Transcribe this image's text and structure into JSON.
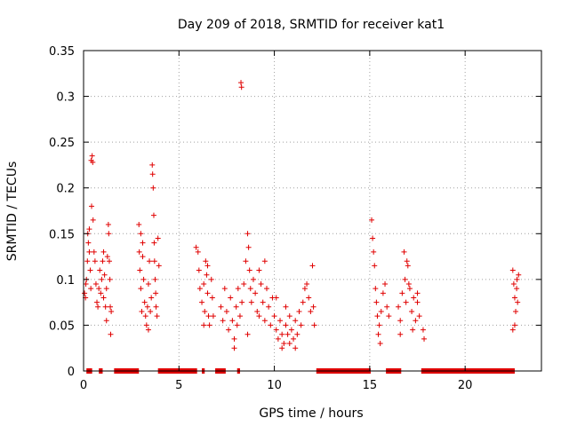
{
  "colors": {
    "series": "#e00000",
    "frame": "#000000",
    "grid": "#a0a0a0"
  },
  "chart_data": {
    "type": "scatter",
    "title": "Day 209 of 2018, SRMTID for receiver kat1",
    "xlabel": "GPS time / hours",
    "ylabel": "SRMTID / TECUs",
    "xlim": [
      0,
      24
    ],
    "ylim": [
      0,
      0.35
    ],
    "grid": true,
    "xticks": [
      0,
      5,
      10,
      15,
      20
    ],
    "xtick_labels": [
      "0",
      "5",
      "10",
      "15",
      "20"
    ],
    "yticks": [
      0,
      0.05,
      0.1,
      0.15,
      0.2,
      0.25,
      0.3,
      0.35
    ],
    "ytick_labels": [
      "0",
      "0.05",
      "0.1",
      "0.15",
      "0.2",
      "0.25",
      "0.3",
      "0.35"
    ],
    "marker": "+",
    "series": [
      {
        "name": "SRMTID",
        "points": [
          [
            0.05,
            0.085
          ],
          [
            0.1,
            0.08
          ],
          [
            0.12,
            0.095
          ],
          [
            0.15,
            0.1
          ],
          [
            0.2,
            0.12
          ],
          [
            0.22,
            0.15
          ],
          [
            0.25,
            0.14
          ],
          [
            0.3,
            0.13
          ],
          [
            0.35,
            0.11
          ],
          [
            0.38,
            0.09
          ],
          [
            0.4,
            0.23
          ],
          [
            0.45,
            0.235
          ],
          [
            0.48,
            0.228
          ],
          [
            0.42,
            0.18
          ],
          [
            0.5,
            0.165
          ],
          [
            0.55,
            0.13
          ],
          [
            0.6,
            0.12
          ],
          [
            0.65,
            0.095
          ],
          [
            0.7,
            0.075
          ],
          [
            0.75,
            0.07
          ],
          [
            0.8,
            0.09
          ],
          [
            0.85,
            0.11
          ],
          [
            0.9,
            0.085
          ],
          [
            0.95,
            0.1
          ],
          [
            1.0,
            0.12
          ],
          [
            1.05,
            0.08
          ],
          [
            1.1,
            0.105
          ],
          [
            1.15,
            0.07
          ],
          [
            1.2,
            0.09
          ],
          [
            1.25,
            0.125
          ],
          [
            1.3,
            0.16
          ],
          [
            1.32,
            0.15
          ],
          [
            1.35,
            0.12
          ],
          [
            1.38,
            0.1
          ],
          [
            1.4,
            0.07
          ],
          [
            1.42,
            0.04
          ],
          [
            1.45,
            0.065
          ],
          [
            1.2,
            0.055
          ],
          [
            1.05,
            0.13
          ],
          [
            0.3,
            0.155
          ],
          [
            2.9,
            0.16
          ],
          [
            2.92,
            0.13
          ],
          [
            2.95,
            0.11
          ],
          [
            3.0,
            0.09
          ],
          [
            3.05,
            0.065
          ],
          [
            3.1,
            0.14
          ],
          [
            3.15,
            0.1
          ],
          [
            3.2,
            0.075
          ],
          [
            3.25,
            0.06
          ],
          [
            3.3,
            0.05
          ],
          [
            3.35,
            0.07
          ],
          [
            3.4,
            0.095
          ],
          [
            3.45,
            0.12
          ],
          [
            3.5,
            0.065
          ],
          [
            3.55,
            0.08
          ],
          [
            3.6,
            0.225
          ],
          [
            3.62,
            0.215
          ],
          [
            3.65,
            0.2
          ],
          [
            3.68,
            0.17
          ],
          [
            3.7,
            0.14
          ],
          [
            3.72,
            0.12
          ],
          [
            3.75,
            0.1
          ],
          [
            3.78,
            0.085
          ],
          [
            3.8,
            0.07
          ],
          [
            3.85,
            0.06
          ],
          [
            3.9,
            0.145
          ],
          [
            3.95,
            0.115
          ],
          [
            3.0,
            0.15
          ],
          [
            3.1,
            0.125
          ],
          [
            3.4,
            0.045
          ],
          [
            5.9,
            0.135
          ],
          [
            6.0,
            0.13
          ],
          [
            6.05,
            0.11
          ],
          [
            6.1,
            0.09
          ],
          [
            6.2,
            0.075
          ],
          [
            6.3,
            0.095
          ],
          [
            6.35,
            0.065
          ],
          [
            6.4,
            0.12
          ],
          [
            6.45,
            0.105
          ],
          [
            6.5,
            0.085
          ],
          [
            6.55,
            0.06
          ],
          [
            6.6,
            0.05
          ],
          [
            6.7,
            0.1
          ],
          [
            6.75,
            0.08
          ],
          [
            6.8,
            0.06
          ],
          [
            6.3,
            0.05
          ],
          [
            6.5,
            0.115
          ],
          [
            7.2,
            0.07
          ],
          [
            7.3,
            0.055
          ],
          [
            7.4,
            0.09
          ],
          [
            7.5,
            0.065
          ],
          [
            7.6,
            0.045
          ],
          [
            7.7,
            0.08
          ],
          [
            7.8,
            0.055
          ],
          [
            7.9,
            0.035
          ],
          [
            8.0,
            0.07
          ],
          [
            8.05,
            0.05
          ],
          [
            8.1,
            0.09
          ],
          [
            8.2,
            0.06
          ],
          [
            8.25,
            0.315
          ],
          [
            8.28,
            0.31
          ],
          [
            8.3,
            0.075
          ],
          [
            8.4,
            0.095
          ],
          [
            8.5,
            0.12
          ],
          [
            8.6,
            0.15
          ],
          [
            8.65,
            0.135
          ],
          [
            8.7,
            0.11
          ],
          [
            8.75,
            0.09
          ],
          [
            8.8,
            0.075
          ],
          [
            8.9,
            0.1
          ],
          [
            9.0,
            0.085
          ],
          [
            9.1,
            0.065
          ],
          [
            9.2,
            0.11
          ],
          [
            9.3,
            0.095
          ],
          [
            9.4,
            0.075
          ],
          [
            9.5,
            0.055
          ],
          [
            9.6,
            0.09
          ],
          [
            9.7,
            0.07
          ],
          [
            9.8,
            0.05
          ],
          [
            9.9,
            0.08
          ],
          [
            10.0,
            0.06
          ],
          [
            10.1,
            0.045
          ],
          [
            10.2,
            0.035
          ],
          [
            10.3,
            0.055
          ],
          [
            10.4,
            0.04
          ],
          [
            10.5,
            0.03
          ],
          [
            10.6,
            0.05
          ],
          [
            10.7,
            0.04
          ],
          [
            10.8,
            0.06
          ],
          [
            10.9,
            0.045
          ],
          [
            11.0,
            0.035
          ],
          [
            11.1,
            0.055
          ],
          [
            11.2,
            0.04
          ],
          [
            11.3,
            0.065
          ],
          [
            11.4,
            0.05
          ],
          [
            11.5,
            0.075
          ],
          [
            11.6,
            0.09
          ],
          [
            11.7,
            0.095
          ],
          [
            11.8,
            0.08
          ],
          [
            11.9,
            0.065
          ],
          [
            12.0,
            0.115
          ],
          [
            12.05,
            0.07
          ],
          [
            12.1,
            0.05
          ],
          [
            9.5,
            0.12
          ],
          [
            10.1,
            0.08
          ],
          [
            10.4,
            0.025
          ],
          [
            10.8,
            0.03
          ],
          [
            11.1,
            0.025
          ],
          [
            8.6,
            0.04
          ],
          [
            7.9,
            0.025
          ],
          [
            9.2,
            0.06
          ],
          [
            10.6,
            0.07
          ],
          [
            15.1,
            0.165
          ],
          [
            15.15,
            0.145
          ],
          [
            15.2,
            0.13
          ],
          [
            15.25,
            0.115
          ],
          [
            15.3,
            0.09
          ],
          [
            15.35,
            0.075
          ],
          [
            15.4,
            0.06
          ],
          [
            15.5,
            0.05
          ],
          [
            15.6,
            0.065
          ],
          [
            15.7,
            0.085
          ],
          [
            15.8,
            0.095
          ],
          [
            15.9,
            0.07
          ],
          [
            15.45,
            0.04
          ],
          [
            15.55,
            0.03
          ],
          [
            16.0,
            0.06
          ],
          [
            16.5,
            0.07
          ],
          [
            16.6,
            0.055
          ],
          [
            16.7,
            0.085
          ],
          [
            16.8,
            0.13
          ],
          [
            16.85,
            0.1
          ],
          [
            16.9,
            0.075
          ],
          [
            17.0,
            0.115
          ],
          [
            17.1,
            0.09
          ],
          [
            17.2,
            0.065
          ],
          [
            17.3,
            0.08
          ],
          [
            17.4,
            0.055
          ],
          [
            17.5,
            0.075
          ],
          [
            17.6,
            0.06
          ],
          [
            17.8,
            0.045
          ],
          [
            17.85,
            0.035
          ],
          [
            16.95,
            0.12
          ],
          [
            17.05,
            0.095
          ],
          [
            17.25,
            0.045
          ],
          [
            16.6,
            0.04
          ],
          [
            17.5,
            0.085
          ],
          [
            22.5,
            0.11
          ],
          [
            22.55,
            0.095
          ],
          [
            22.6,
            0.08
          ],
          [
            22.65,
            0.065
          ],
          [
            22.7,
            0.09
          ],
          [
            22.75,
            0.075
          ],
          [
            22.8,
            0.105
          ],
          [
            22.5,
            0.045
          ],
          [
            22.6,
            0.05
          ],
          [
            22.72,
            0.1
          ]
        ]
      }
    ],
    "baseline_coverage_hours": [
      [
        0.15,
        0.45
      ],
      [
        0.8,
        1.0
      ],
      [
        1.6,
        2.9
      ],
      [
        3.9,
        5.95
      ],
      [
        6.2,
        6.35
      ],
      [
        6.9,
        7.45
      ],
      [
        8.05,
        8.2
      ],
      [
        12.2,
        15.05
      ],
      [
        15.85,
        16.65
      ],
      [
        17.7,
        22.6
      ]
    ]
  }
}
